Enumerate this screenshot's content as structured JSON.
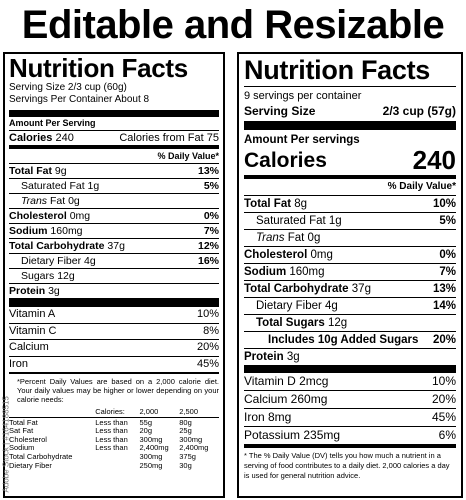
{
  "headline": "Editable and Resizable",
  "stock_id": "Adobe Stock | #164188515",
  "left": {
    "title": "Nutrition Facts",
    "serving_size": "Serving Size 2/3 cup (60g)",
    "servings_per": "Servings Per Container About 8",
    "amount_per": "Amount Per Serving",
    "calories_label": "Calories",
    "calories_value": "240",
    "cal_from_fat": "Calories from Fat 75",
    "dv_header": "% Daily Value*",
    "rows": [
      {
        "label": "Total Fat",
        "amt": "9g",
        "dv": "13%",
        "bold": true,
        "indent": 0
      },
      {
        "label": "Saturated Fat",
        "amt": "1g",
        "dv": "5%",
        "bold": false,
        "indent": 1
      },
      {
        "label": "Trans",
        "amt": "Fat 0g",
        "dv": "",
        "bold": false,
        "italic": true,
        "indent": 1
      },
      {
        "label": "Cholesterol",
        "amt": "0mg",
        "dv": "0%",
        "bold": true,
        "indent": 0
      },
      {
        "label": "Sodium",
        "amt": "160mg",
        "dv": "7%",
        "bold": true,
        "indent": 0
      },
      {
        "label": "Total Carbohydrate",
        "amt": "37g",
        "dv": "12%",
        "bold": true,
        "indent": 0
      },
      {
        "label": "Dietary Fiber",
        "amt": "4g",
        "dv": "16%",
        "bold": false,
        "indent": 1
      },
      {
        "label": "Sugars",
        "amt": "12g",
        "dv": "",
        "bold": false,
        "indent": 1
      },
      {
        "label": "Protein",
        "amt": "3g",
        "dv": "",
        "bold": true,
        "indent": 0
      }
    ],
    "vitamins": [
      {
        "label": "Vitamin A",
        "dv": "10%"
      },
      {
        "label": "Vitamin C",
        "dv": "8%"
      },
      {
        "label": "Calcium",
        "dv": "20%"
      },
      {
        "label": "Iron",
        "dv": "45%"
      }
    ],
    "footnote": "*Percent Daily Values are based on a 2,000 calorie diet. Your daily values may be higher or lower depending on your calorie needs:",
    "dv_table": {
      "headers": [
        "",
        "Calories:",
        "2,000",
        "2,500"
      ],
      "rows": [
        [
          "Total Fat",
          "Less than",
          "55g",
          "80g"
        ],
        [
          "Sat Fat",
          "Less than",
          "20g",
          "25g"
        ],
        [
          "Cholesterol",
          "Less than",
          "300mg",
          "300mg"
        ],
        [
          "Sodium",
          "Less than",
          "2,400mg",
          "2,400mg"
        ],
        [
          "Total Carbohydrate",
          "",
          "300mg",
          "375g"
        ],
        [
          "Dietary Fiber",
          "",
          "250mg",
          "30g"
        ]
      ]
    }
  },
  "right": {
    "title": "Nutrition Facts",
    "servings": "9 servings per container",
    "serving_size_label": "Serving Size",
    "serving_size_value": "2/3 cup (57g)",
    "amount_per": "Amount Per servings",
    "calories_label": "Calories",
    "calories_value": "240",
    "dv_header": "% Daily Value*",
    "rows": [
      {
        "label": "Total Fat",
        "amt": "8g",
        "dv": "10%",
        "bold": true,
        "indent": 0
      },
      {
        "label": "Saturated Fat",
        "amt": "1g",
        "dv": "5%",
        "bold": false,
        "indent": 1
      },
      {
        "label": "Trans",
        "amt": "Fat 0g",
        "dv": "",
        "bold": false,
        "italic": true,
        "indent": 1
      },
      {
        "label": "Cholesterol",
        "amt": "0mg",
        "dv": "0%",
        "bold": true,
        "indent": 0
      },
      {
        "label": "Sodium",
        "amt": "160mg",
        "dv": "7%",
        "bold": true,
        "indent": 0
      },
      {
        "label": "Total Carbohydrate",
        "amt": "37g",
        "dv": "13%",
        "bold": true,
        "indent": 0
      },
      {
        "label": "Dietary Fiber",
        "amt": "4g",
        "dv": "14%",
        "bold": false,
        "indent": 1
      },
      {
        "label": "Total Sugars",
        "amt": "12g",
        "dv": "",
        "bold": true,
        "indent": 1
      },
      {
        "label": "Includes 10g Added Sugars",
        "amt": "",
        "dv": "20%",
        "bold": true,
        "indent": 2
      },
      {
        "label": "Protein",
        "amt": "3g",
        "dv": "",
        "bold": true,
        "indent": 0
      }
    ],
    "vitamins": [
      {
        "label": "Vitamin D 2mcg",
        "dv": "10%"
      },
      {
        "label": "Calcium 260mg",
        "dv": "20%"
      },
      {
        "label": "Iron 8mg",
        "dv": "45%"
      },
      {
        "label": "Potassium 235mg",
        "dv": "6%"
      }
    ],
    "footnote": "* The % Daily Value (DV) tells you how much a nutrient in a serving of food contributes to a daily diet. 2,000 calories a day is used for general nutrition advice."
  }
}
